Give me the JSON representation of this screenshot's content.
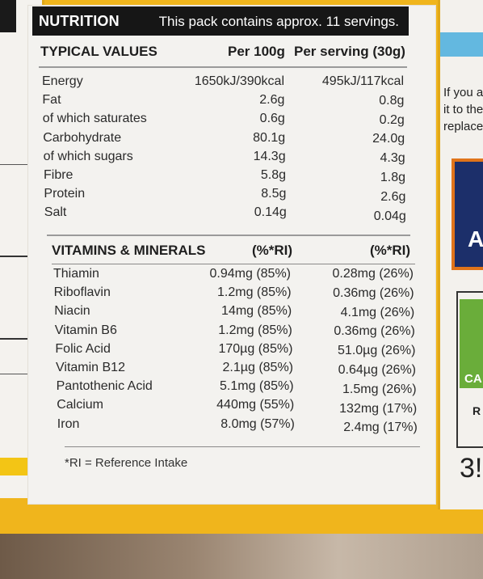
{
  "header": {
    "title": "NUTRITION",
    "servings_note": "This pack contains approx. 11 servings."
  },
  "typical": {
    "heading": "TYPICAL VALUES",
    "col1": "Per 100g",
    "col2": "Per serving (30g)",
    "rows": [
      {
        "label": "Energy",
        "per100": "1650kJ/390kcal",
        "serving": "495kJ/117kcal"
      },
      {
        "label": "Fat",
        "per100": "2.6g",
        "serving": "0.8g"
      },
      {
        "label": "of which saturates",
        "per100": "0.6g",
        "serving": "0.2g"
      },
      {
        "label": "Carbohydrate",
        "per100": "80.1g",
        "serving": "24.0g"
      },
      {
        "label": "of which sugars",
        "per100": "14.3g",
        "serving": "4.3g"
      },
      {
        "label": "Fibre",
        "per100": "5.8g",
        "serving": "1.8g"
      },
      {
        "label": "Protein",
        "per100": "8.5g",
        "serving": "2.6g"
      },
      {
        "label": "Salt",
        "per100": "0.14g",
        "serving": "0.04g"
      }
    ]
  },
  "vitamins": {
    "heading": "VITAMINS & MINERALS",
    "col1": "(%*RI)",
    "col2": "(%*RI)",
    "rows": [
      {
        "label": "Thiamin",
        "per100": "0.94mg (85%)",
        "serving": "0.28mg (26%)"
      },
      {
        "label": "Riboflavin",
        "per100": "1.2mg (85%)",
        "serving": "0.36mg (26%)"
      },
      {
        "label": "Niacin",
        "per100": "14mg (85%)",
        "serving": "4.1mg (26%)"
      },
      {
        "label": "Vitamin B6",
        "per100": "1.2mg (85%)",
        "serving": "0.36mg (26%)"
      },
      {
        "label": "Folic Acid",
        "per100": "170µg (85%)",
        "serving": "51.0µg (26%)"
      },
      {
        "label": "Vitamin B12",
        "per100": "2.1µg (85%)",
        "serving": "0.64µg (26%)"
      },
      {
        "label": "Pantothenic Acid",
        "per100": "5.1mg (85%)",
        "serving": "1.5mg (26%)"
      },
      {
        "label": "Calcium",
        "per100": "440mg (55%)",
        "serving": "132mg (17%)"
      },
      {
        "label": "Iron",
        "per100": "8.0mg (57%)",
        "serving": "2.4mg (17%)"
      }
    ]
  },
  "footnote": "*RI = Reference Intake",
  "right_panel": {
    "text_lines": [
      "If you a",
      "it to the",
      "replace"
    ],
    "logo_letter": "A",
    "badge_text": "CA",
    "letter": "R",
    "number": "3!"
  },
  "colors": {
    "box_yellow": "#f0b51c",
    "panel_bg": "#f3f2ef",
    "header_black": "#161616"
  }
}
